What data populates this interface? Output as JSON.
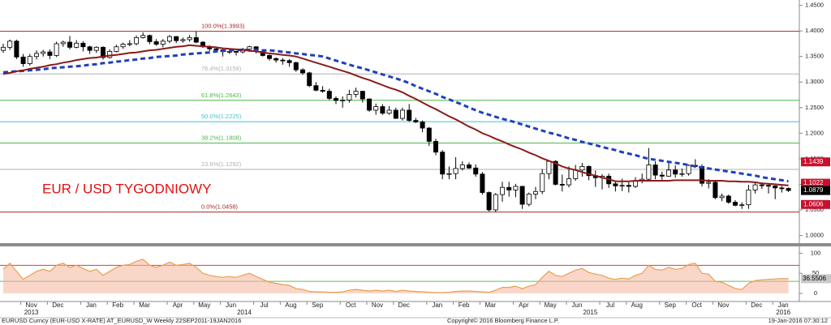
{
  "chart_data": [
    {
      "type": "candlestick",
      "title": "EUR / USD TYGODNIOWY",
      "categories": [
        null,
        null,
        null,
        "Nov",
        null,
        null,
        null,
        "Dec",
        null,
        null,
        null,
        null,
        "Jan",
        null,
        null,
        null,
        "Feb",
        null,
        null,
        null,
        "Mar",
        null,
        null,
        null,
        null,
        "Apr",
        null,
        null,
        null,
        "May",
        null,
        null,
        null,
        "Jun",
        null,
        null,
        null,
        null,
        "Jul",
        null,
        null,
        null,
        "Aug",
        null,
        null,
        null,
        "Sep",
        null,
        null,
        null,
        null,
        "Oct",
        null,
        null,
        null,
        "Nov",
        null,
        null,
        null,
        "Dec",
        null,
        null,
        null,
        null,
        "Jan",
        null,
        null,
        null,
        "Feb",
        null,
        null,
        null,
        "Mar",
        null,
        null,
        null,
        null,
        "Apr",
        null,
        null,
        null,
        "May",
        null,
        null,
        null,
        "Jun",
        null,
        null,
        null,
        null,
        "Jul",
        null,
        null,
        null,
        "Aug",
        null,
        null,
        null,
        null,
        "Sep",
        null,
        null,
        null,
        "Oct",
        null,
        null,
        null,
        "Nov",
        null,
        null,
        null,
        null,
        "Dec",
        null,
        null,
        null,
        "Jan",
        null,
        null
      ],
      "year_labels": [
        null,
        null,
        null,
        "2013",
        null,
        null,
        null,
        null,
        null,
        null,
        null,
        null,
        null,
        null,
        null,
        null,
        null,
        null,
        null,
        null,
        null,
        null,
        null,
        null,
        null,
        null,
        null,
        null,
        null,
        null,
        null,
        null,
        null,
        null,
        null,
        "2014",
        null,
        null,
        null,
        null,
        null,
        null,
        null,
        null,
        null,
        null,
        null,
        null,
        null,
        null,
        null,
        null,
        null,
        null,
        null,
        null,
        null,
        null,
        null,
        null,
        null,
        null,
        null,
        null,
        null,
        null,
        null,
        null,
        null,
        null,
        null,
        null,
        null,
        null,
        null,
        null,
        null,
        null,
        null,
        null,
        null,
        null,
        null,
        null,
        null,
        null,
        null,
        "2015",
        null,
        null,
        null,
        null,
        null,
        null,
        null,
        null,
        null,
        null,
        null,
        null,
        null,
        null,
        null,
        null,
        null,
        null,
        null,
        null,
        null,
        null,
        null,
        null,
        null,
        null,
        null,
        null,
        "2016",
        null,
        null
      ],
      "open": [
        1.362,
        1.368,
        1.38,
        1.349,
        1.336,
        1.35,
        1.356,
        1.359,
        1.352,
        1.375,
        1.378,
        1.368,
        1.376,
        1.369,
        1.362,
        1.368,
        1.348,
        1.36,
        1.369,
        1.374,
        1.375,
        1.387,
        1.391,
        1.379,
        1.374,
        1.38,
        1.389,
        1.381,
        1.383,
        1.387,
        1.378,
        1.369,
        1.365,
        1.363,
        1.36,
        1.36,
        1.359,
        1.364,
        1.369,
        1.36,
        1.352,
        1.346,
        1.343,
        1.342,
        1.338,
        1.324,
        1.318,
        1.293,
        1.284,
        1.282,
        1.268,
        1.264,
        1.265,
        1.276,
        1.282,
        1.267,
        1.245,
        1.252,
        1.239,
        1.245,
        1.229,
        1.245,
        1.225,
        1.222,
        1.21,
        1.184,
        1.163,
        1.12,
        1.121,
        1.131,
        1.138,
        1.132,
        1.12,
        1.084,
        1.05,
        1.08,
        1.094,
        1.089,
        1.096,
        1.061,
        1.081,
        1.086,
        1.121,
        1.145,
        1.1,
        1.099,
        1.111,
        1.128,
        1.135,
        1.117,
        1.113,
        1.116,
        1.101,
        1.097,
        1.098,
        1.096,
        1.107,
        1.11,
        1.138,
        1.118,
        1.116,
        1.128,
        1.12,
        1.121,
        1.137,
        1.135,
        1.102,
        1.104,
        1.074,
        1.077,
        1.065,
        1.059,
        1.06,
        1.089,
        1.099,
        1.098,
        1.097,
        1.093,
        1.092
      ],
      "high": [
        1.375,
        1.383,
        1.383,
        1.355,
        1.355,
        1.362,
        1.363,
        1.364,
        1.379,
        1.381,
        1.39,
        1.382,
        1.38,
        1.371,
        1.37,
        1.37,
        1.364,
        1.373,
        1.377,
        1.382,
        1.391,
        1.397,
        1.393,
        1.384,
        1.384,
        1.392,
        1.39,
        1.387,
        1.392,
        1.399,
        1.38,
        1.372,
        1.368,
        1.367,
        1.366,
        1.361,
        1.367,
        1.371,
        1.37,
        1.364,
        1.354,
        1.348,
        1.347,
        1.345,
        1.34,
        1.327,
        1.32,
        1.3,
        1.292,
        1.287,
        1.272,
        1.272,
        1.285,
        1.289,
        1.283,
        1.268,
        1.258,
        1.257,
        1.253,
        1.25,
        1.25,
        1.257,
        1.23,
        1.225,
        1.212,
        1.189,
        1.167,
        1.135,
        1.153,
        1.145,
        1.143,
        1.139,
        1.124,
        1.086,
        1.083,
        1.105,
        1.105,
        1.101,
        1.097,
        1.084,
        1.095,
        1.13,
        1.146,
        1.147,
        1.119,
        1.135,
        1.138,
        1.142,
        1.137,
        1.127,
        1.12,
        1.121,
        1.105,
        1.111,
        1.104,
        1.114,
        1.121,
        1.171,
        1.145,
        1.125,
        1.145,
        1.137,
        1.131,
        1.139,
        1.149,
        1.139,
        1.11,
        1.106,
        1.082,
        1.08,
        1.069,
        1.065,
        1.099,
        1.105,
        1.104,
        1.1,
        1.098,
        1.097,
        1.094
      ],
      "low": [
        1.357,
        1.363,
        1.345,
        1.33,
        1.332,
        1.344,
        1.35,
        1.345,
        1.349,
        1.369,
        1.364,
        1.366,
        1.36,
        1.355,
        1.357,
        1.344,
        1.346,
        1.358,
        1.365,
        1.37,
        1.372,
        1.385,
        1.374,
        1.371,
        1.368,
        1.376,
        1.376,
        1.377,
        1.379,
        1.376,
        1.367,
        1.36,
        1.358,
        1.35,
        1.355,
        1.352,
        1.356,
        1.359,
        1.356,
        1.35,
        1.342,
        1.338,
        1.334,
        1.33,
        1.32,
        1.314,
        1.29,
        1.282,
        1.279,
        1.265,
        1.257,
        1.25,
        1.26,
        1.27,
        1.26,
        1.242,
        1.236,
        1.236,
        1.236,
        1.228,
        1.225,
        1.222,
        1.22,
        1.202,
        1.175,
        1.157,
        1.11,
        1.11,
        1.11,
        1.127,
        1.13,
        1.115,
        1.08,
        1.047,
        1.046,
        1.066,
        1.076,
        1.075,
        1.052,
        1.057,
        1.071,
        1.081,
        1.11,
        1.098,
        1.086,
        1.094,
        1.107,
        1.115,
        1.108,
        1.095,
        1.09,
        1.093,
        1.086,
        1.087,
        1.084,
        1.093,
        1.102,
        1.108,
        1.11,
        1.109,
        1.115,
        1.113,
        1.115,
        1.117,
        1.132,
        1.096,
        1.092,
        1.071,
        1.067,
        1.062,
        1.057,
        1.052,
        1.052,
        1.082,
        1.091,
        1.082,
        1.071,
        1.084,
        1.085
      ],
      "close": [
        1.368,
        1.38,
        1.349,
        1.336,
        1.35,
        1.356,
        1.359,
        1.352,
        1.375,
        1.378,
        1.368,
        1.376,
        1.369,
        1.362,
        1.368,
        1.348,
        1.36,
        1.369,
        1.374,
        1.375,
        1.387,
        1.391,
        1.379,
        1.374,
        1.38,
        1.389,
        1.381,
        1.383,
        1.387,
        1.378,
        1.369,
        1.365,
        1.363,
        1.36,
        1.36,
        1.359,
        1.364,
        1.369,
        1.36,
        1.352,
        1.346,
        1.343,
        1.342,
        1.338,
        1.324,
        1.318,
        1.293,
        1.284,
        1.282,
        1.268,
        1.264,
        1.265,
        1.276,
        1.282,
        1.267,
        1.245,
        1.252,
        1.239,
        1.245,
        1.229,
        1.245,
        1.225,
        1.222,
        1.21,
        1.184,
        1.163,
        1.12,
        1.121,
        1.131,
        1.138,
        1.132,
        1.12,
        1.084,
        1.05,
        1.08,
        1.094,
        1.089,
        1.096,
        1.061,
        1.081,
        1.086,
        1.121,
        1.145,
        1.1,
        1.099,
        1.111,
        1.128,
        1.135,
        1.117,
        1.113,
        1.116,
        1.101,
        1.097,
        1.098,
        1.096,
        1.107,
        1.11,
        1.138,
        1.118,
        1.116,
        1.128,
        1.12,
        1.121,
        1.137,
        1.135,
        1.102,
        1.104,
        1.074,
        1.077,
        1.065,
        1.059,
        1.06,
        1.089,
        1.099,
        1.098,
        1.097,
        1.093,
        1.092,
        1.088
      ],
      "up_color": "#ffffff",
      "down_color": "#000000",
      "series": [
        {
          "color": "#1f3fbf",
          "dash": true,
          "values": [
            1.319,
            1.32,
            1.321,
            1.322,
            1.323,
            1.324,
            1.325,
            1.327,
            1.328,
            1.329,
            1.33,
            1.331,
            1.332,
            1.334,
            1.335,
            1.337,
            1.338,
            1.34,
            1.341,
            1.343,
            1.344,
            1.346,
            1.347,
            1.349,
            1.35,
            1.351,
            1.352,
            1.354,
            1.355,
            1.356,
            1.357,
            1.358,
            1.36,
            1.361,
            1.362,
            1.363,
            1.363,
            1.363,
            1.363,
            1.362,
            1.362,
            1.361,
            1.359,
            1.358,
            1.356,
            1.355,
            1.353,
            1.352,
            1.35,
            1.346,
            1.342,
            1.338,
            1.334,
            1.33,
            1.327,
            1.323,
            1.319,
            1.315,
            1.311,
            1.307,
            1.303,
            1.298,
            1.292,
            1.287,
            1.282,
            1.277,
            1.271,
            1.266,
            1.261,
            1.256,
            1.25,
            1.245,
            1.24,
            1.236,
            1.232,
            1.228,
            1.225,
            1.221,
            1.217,
            1.213,
            1.209,
            1.205,
            1.201,
            1.198,
            1.194,
            1.19,
            1.187,
            1.183,
            1.18,
            1.177,
            1.173,
            1.17,
            1.167,
            1.163,
            1.16,
            1.157,
            1.153,
            1.15,
            1.148,
            1.146,
            1.144,
            1.142,
            1.14,
            1.138,
            1.135,
            1.133,
            1.131,
            1.129,
            1.127,
            1.125,
            1.123,
            1.121,
            1.119,
            1.117,
            1.114,
            1.112,
            1.11,
            1.108,
            1.106
          ]
        },
        {
          "color": "#8b1a1a",
          "dash": false,
          "values": [
            1.316,
            1.318,
            1.321,
            1.323,
            1.326,
            1.328,
            1.33,
            1.333,
            1.335,
            1.338,
            1.34,
            1.343,
            1.345,
            1.347,
            1.348,
            1.35,
            1.352,
            1.353,
            1.355,
            1.357,
            1.358,
            1.36,
            1.362,
            1.363,
            1.365,
            1.367,
            1.369,
            1.37,
            1.372,
            1.371,
            1.37,
            1.369,
            1.368,
            1.366,
            1.365,
            1.364,
            1.363,
            1.361,
            1.36,
            1.358,
            1.356,
            1.355,
            1.353,
            1.352,
            1.35,
            1.346,
            1.342,
            1.338,
            1.334,
            1.33,
            1.326,
            1.322,
            1.318,
            1.313,
            1.308,
            1.304,
            1.299,
            1.294,
            1.289,
            1.285,
            1.28,
            1.273,
            1.267,
            1.26,
            1.253,
            1.247,
            1.24,
            1.233,
            1.227,
            1.22,
            1.213,
            1.207,
            1.2,
            1.195,
            1.189,
            1.184,
            1.178,
            1.173,
            1.168,
            1.162,
            1.157,
            1.151,
            1.146,
            1.141,
            1.135,
            1.131,
            1.128,
            1.124,
            1.12,
            1.117,
            1.113,
            1.11,
            1.106,
            1.106,
            1.106,
            1.107,
            1.107,
            1.107,
            1.107,
            1.107,
            1.107,
            1.108,
            1.108,
            1.108,
            1.108,
            1.108,
            1.107,
            1.107,
            1.107,
            1.106,
            1.106,
            1.105,
            1.105,
            1.104,
            1.102,
            1.101,
            1.1,
            1.099,
            1.098
          ]
        }
      ],
      "ylim": [
        0.985,
        1.4605
      ],
      "yticks": [
        {
          "value": 1.45,
          "label": "1.4500"
        },
        {
          "value": 1.4,
          "label": "1.4000"
        },
        {
          "value": 1.35,
          "label": "1.3500"
        },
        {
          "value": 1.3,
          "label": "1.3000"
        },
        {
          "value": 1.25,
          "label": "1.2500"
        },
        {
          "value": 1.2,
          "label": "1.2000"
        },
        {
          "value": 1.15,
          "label": "1.1500"
        },
        {
          "value": 1.1,
          "label": "1.1000"
        },
        {
          "value": 1.05,
          "label": "1.0500"
        },
        {
          "value": 1.0,
          "label": "1.0000"
        }
      ],
      "grid": false,
      "fib_levels": [
        {
          "value": 1.3993,
          "label": "100.0%(1.3993)",
          "color": "#a52a2a"
        },
        {
          "value": 1.3159,
          "label": "76.4%(1.3159)",
          "color": "#b0b0b0"
        },
        {
          "value": 1.2643,
          "label": "61.8%(1.2643)",
          "color": "#4cb84c"
        },
        {
          "value": 1.2225,
          "label": "50.0%(1.2225)",
          "color": "#3cc3d8"
        },
        {
          "value": 1.1808,
          "label": "38.2%(1.1808)",
          "color": "#4cb84c"
        },
        {
          "value": 1.1292,
          "label": "23.6%(1.1292)",
          "color": "#b0b0b0"
        },
        {
          "value": 1.0458,
          "label": "0.0%(1.0458)",
          "color": "#a52a2a"
        }
      ],
      "price_tags": [
        {
          "value": 1.1439,
          "color": "#c8102e"
        },
        {
          "value": 1.1022,
          "color": "#c8102e"
        },
        {
          "value": 1.0879,
          "color": "#000000"
        },
        {
          "value": 1.0606,
          "color": "#c8102e"
        }
      ]
    },
    {
      "type": "line",
      "values": [
        60,
        75,
        55,
        35,
        45,
        55,
        60,
        55,
        70,
        75,
        65,
        70,
        62,
        55,
        60,
        45,
        55,
        65,
        70,
        72,
        80,
        85,
        70,
        65,
        70,
        78,
        70,
        72,
        75,
        65,
        50,
        45,
        42,
        40,
        42,
        40,
        45,
        50,
        42,
        35,
        28,
        25,
        22,
        20,
        12,
        10,
        5,
        4,
        4,
        3,
        3,
        4,
        8,
        10,
        8,
        6,
        8,
        6,
        8,
        5,
        8,
        6,
        5,
        4,
        3,
        2,
        2,
        3,
        5,
        6,
        6,
        5,
        4,
        3,
        8,
        15,
        15,
        18,
        12,
        18,
        22,
        40,
        55,
        45,
        42,
        50,
        58,
        62,
        52,
        48,
        45,
        38,
        35,
        38,
        36,
        45,
        50,
        70,
        60,
        58,
        65,
        60,
        62,
        72,
        75,
        50,
        48,
        30,
        28,
        20,
        12,
        10,
        25,
        32,
        34,
        35,
        36,
        37,
        36.5506
      ],
      "color": "#e8a050",
      "fill": "#f5b59c",
      "ylim": [
        -10,
        115
      ],
      "yticks": [
        0,
        50,
        100
      ],
      "levels": [
        {
          "value": 70,
          "color": "#d04040"
        },
        {
          "value": 30,
          "color": "#5cc05c"
        }
      ],
      "last_tag": {
        "value": 36.5506,
        "color": "#c8c8c8"
      }
    }
  ],
  "footer": {
    "left": "EURUSD Curncy (EUR-USD X-RATE) AT_EURUSD_W  Weekly 22SEP2011-19JAN2016",
    "center": "Copyright© 2016 Bloomberg Finance L.P.",
    "right": "19-Jan-2016 07:30:12"
  }
}
